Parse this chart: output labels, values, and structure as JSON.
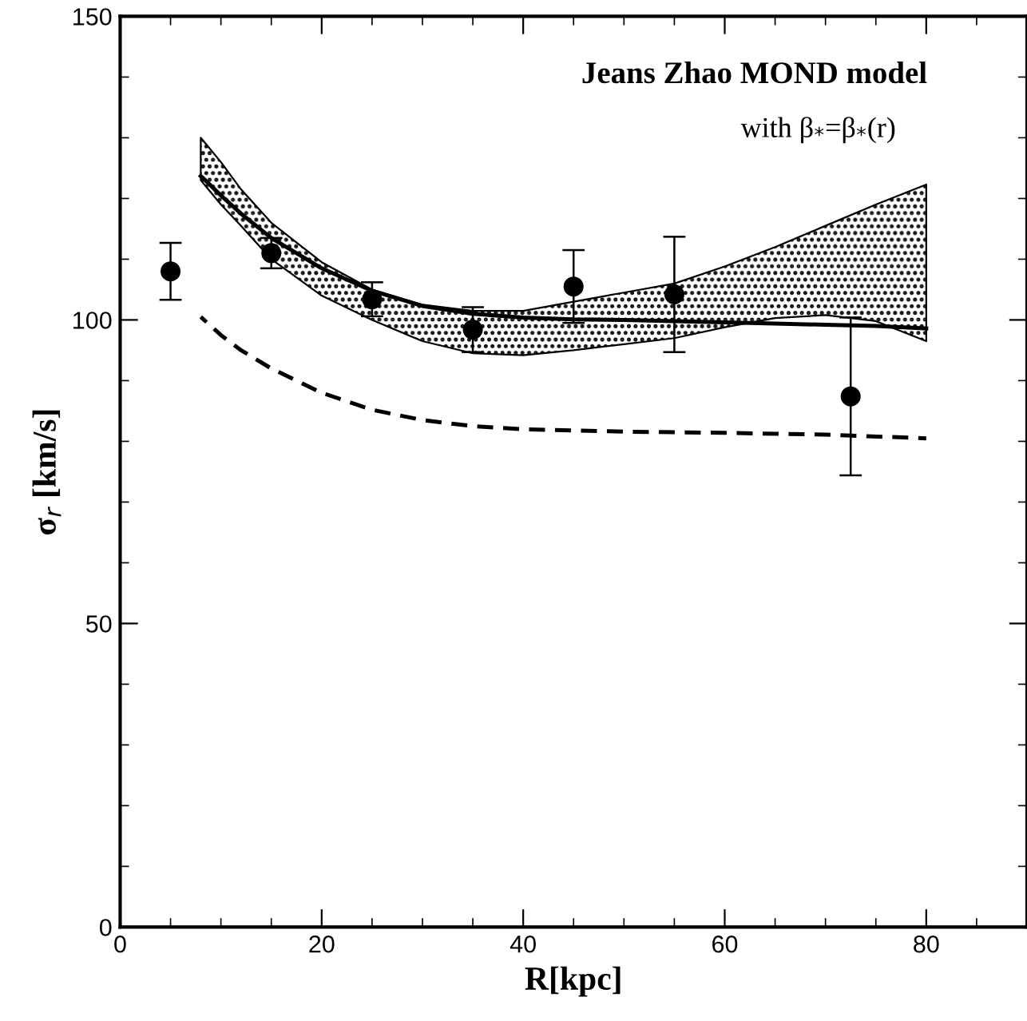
{
  "chart_data": {
    "type": "scatter",
    "xlabel": "R[kpc]",
    "ylabel": "σ$_{r}$ [km/s]",
    "annotations": [
      "Jeans Zhao MOND model",
      "with β$_{*}$=β$_{*}$(r)"
    ],
    "xlim": [
      0,
      90
    ],
    "ylim": [
      0,
      150
    ],
    "xticks": [
      0,
      20,
      40,
      60,
      80
    ],
    "yticks": [
      0,
      50,
      100,
      150
    ],
    "grid": false,
    "legend": false,
    "series": [
      {
        "color": "#000000",
        "marker": "circle",
        "x": [
          5,
          15,
          25,
          35,
          45,
          55,
          72.5
        ],
        "values": [
          108,
          111,
          103.4,
          98.4,
          105.5,
          104.2,
          87.4
        ],
        "errors": [
          4.7,
          2.5,
          2.8,
          3.7,
          6,
          9.5,
          13
        ]
      },
      {
        "type": "line",
        "color": "#000000",
        "line_style": "solid",
        "x": [
          8,
          10,
          12,
          15,
          20,
          25,
          30,
          35,
          40,
          45,
          50,
          55,
          60,
          65,
          70,
          75,
          80
        ],
        "values": [
          123.7,
          120.5,
          117.5,
          113.5,
          108.5,
          104.8,
          102.3,
          101,
          100.4,
          100.1,
          100,
          99.8,
          99.6,
          99.4,
          99.2,
          99,
          98.6
        ],
        "lower": [
          123,
          119,
          115.5,
          110,
          104,
          100,
          96.5,
          94.5,
          94.2,
          95,
          96,
          97,
          98.8,
          100.3,
          100.8,
          99.8,
          96.5
        ],
        "upper": [
          130,
          126,
          121.5,
          116,
          109.5,
          105,
          102.5,
          101.5,
          101.5,
          103,
          104.5,
          106,
          108.8,
          112,
          115.5,
          119,
          122.3
        ]
      },
      {
        "type": "line",
        "color": "#000000",
        "line_style": "dashed",
        "x": [
          8,
          10,
          12,
          15,
          20,
          25,
          30,
          35,
          40,
          50,
          60,
          70,
          80
        ],
        "values": [
          100.5,
          97.5,
          95,
          92,
          88,
          85.2,
          83.5,
          82.5,
          82,
          81.6,
          81.4,
          81.1,
          80.5
        ]
      }
    ]
  }
}
